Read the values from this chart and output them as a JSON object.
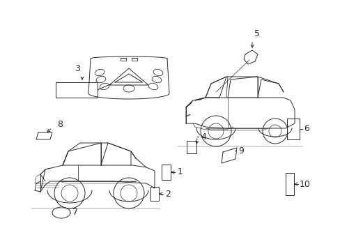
{
  "background_color": "#ffffff",
  "figsize": [
    4.89,
    3.6
  ],
  "dpi": 100,
  "line_color": "#2a2a2a",
  "lw": 0.7
}
